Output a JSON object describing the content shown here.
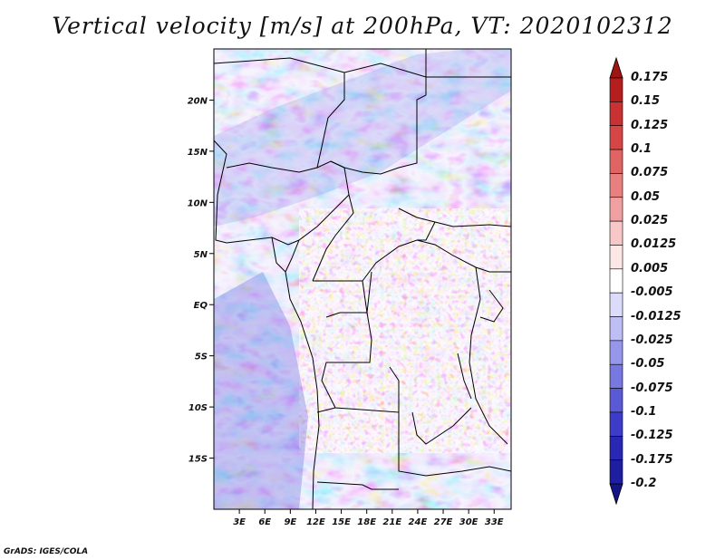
{
  "title": "Vertical velocity [m/s] at 200hPa, VT: 2020102312",
  "credit": "GrADS: IGES/COLA",
  "map": {
    "lon_range": [
      0,
      35
    ],
    "lat_range": [
      -20,
      25
    ],
    "lat_ticks": [
      {
        "value": 20,
        "label": "20N"
      },
      {
        "value": 15,
        "label": "15N"
      },
      {
        "value": 10,
        "label": "10N"
      },
      {
        "value": 5,
        "label": "5N"
      },
      {
        "value": 0,
        "label": "EQ"
      },
      {
        "value": -5,
        "label": "5S"
      },
      {
        "value": -10,
        "label": "10S"
      },
      {
        "value": -15,
        "label": "15S"
      }
    ],
    "lon_ticks": [
      {
        "value": 3,
        "label": "3E"
      },
      {
        "value": 6,
        "label": "6E"
      },
      {
        "value": 9,
        "label": "9E"
      },
      {
        "value": 12,
        "label": "12E"
      },
      {
        "value": 15,
        "label": "15E"
      },
      {
        "value": 18,
        "label": "18E"
      },
      {
        "value": 21,
        "label": "21E"
      },
      {
        "value": 24,
        "label": "24E"
      },
      {
        "value": 27,
        "label": "27E"
      },
      {
        "value": 30,
        "label": "30E"
      },
      {
        "value": 33,
        "label": "33E"
      }
    ]
  },
  "colorbar": {
    "levels": [
      "0.175",
      "0.15",
      "0.125",
      "0.1",
      "0.075",
      "0.05",
      "0.025",
      "0.0125",
      "0.005",
      "-0.005",
      "-0.0125",
      "-0.025",
      "-0.05",
      "-0.075",
      "-0.1",
      "-0.125",
      "-0.175",
      "-0.2"
    ],
    "colors": [
      "#a01414",
      "#b41e1e",
      "#c83232",
      "#d74646",
      "#e06464",
      "#e88080",
      "#f0a0a0",
      "#f8c8c8",
      "#fde6e6",
      "#ffffff",
      "#dcdcfa",
      "#bebef5",
      "#9696eb",
      "#7878e1",
      "#5a5ad7",
      "#3c3cc8",
      "#2828b4",
      "#1e1ea0",
      "#141486"
    ]
  }
}
